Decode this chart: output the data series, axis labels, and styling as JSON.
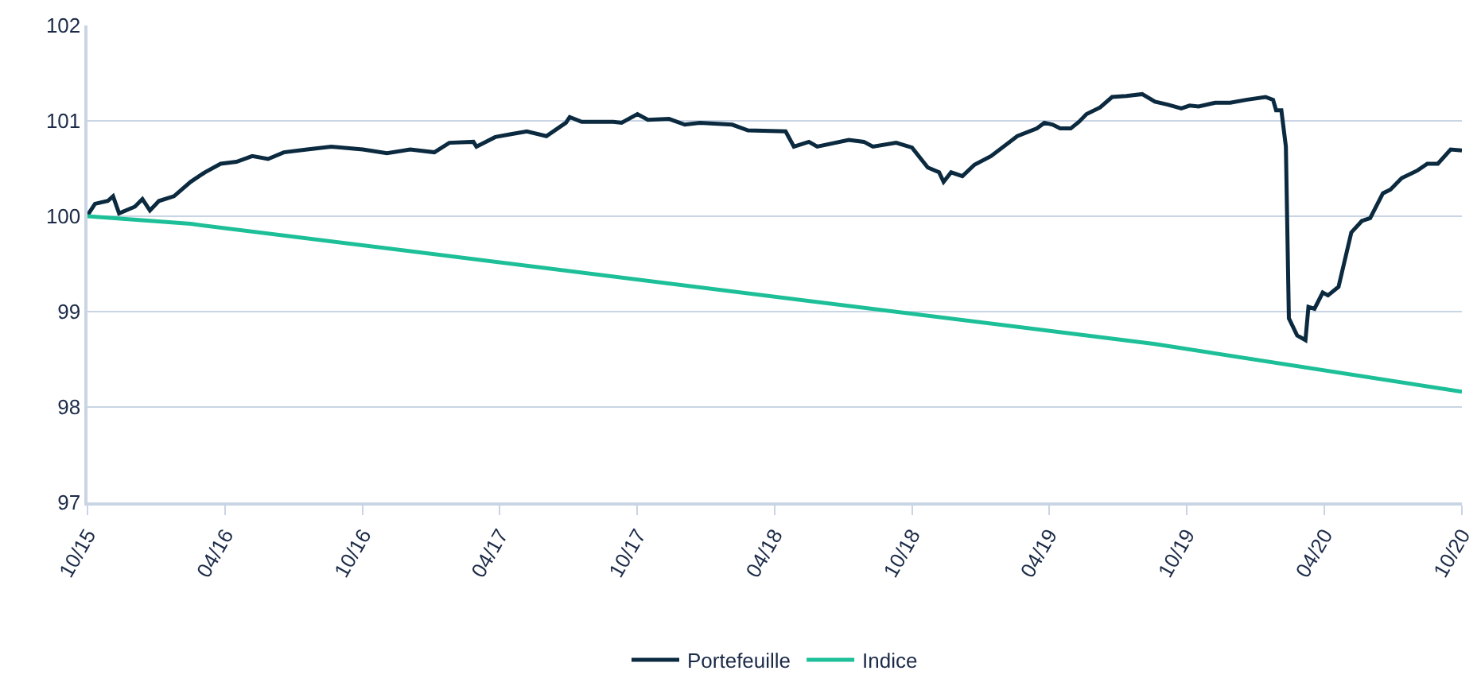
{
  "chart_data": {
    "type": "line",
    "series": [
      {
        "name": "Portefeuille",
        "color": "#0b2a3f",
        "x": [
          "2015-10-01",
          "2015-10-11",
          "2015-10-28",
          "2015-11-04",
          "2015-11-12",
          "2015-12-03",
          "2015-12-13",
          "2015-12-23",
          "2016-01-04",
          "2016-01-24",
          "2016-02-15",
          "2016-03-05",
          "2016-03-26",
          "2016-04-16",
          "2016-05-07",
          "2016-05-28",
          "2016-06-18",
          "2016-07-19",
          "2016-08-20",
          "2016-10-01",
          "2016-11-02",
          "2016-12-03",
          "2017-01-04",
          "2017-01-24",
          "2017-02-25",
          "2017-03-01",
          "2017-03-26",
          "2017-04-16",
          "2017-05-07",
          "2017-06-02",
          "2017-06-28",
          "2017-07-03",
          "2017-07-19",
          "2017-08-30",
          "2017-09-10",
          "2017-10-01",
          "2017-10-15",
          "2017-11-12",
          "2017-12-03",
          "2017-12-23",
          "2018-02-04",
          "2018-02-25",
          "2018-04-16",
          "2018-04-27",
          "2018-05-17",
          "2018-05-28",
          "2018-07-09",
          "2018-07-29",
          "2018-08-10",
          "2018-09-10",
          "2018-10-01",
          "2018-10-22",
          "2018-11-06",
          "2018-11-12",
          "2018-11-22",
          "2018-12-07",
          "2018-12-23",
          "2019-01-14",
          "2019-02-18",
          "2019-03-16",
          "2019-03-26",
          "2019-04-06",
          "2019-04-16",
          "2019-04-30",
          "2019-05-11",
          "2019-05-21",
          "2019-06-08",
          "2019-06-24",
          "2019-07-13",
          "2019-08-03",
          "2019-08-20",
          "2019-09-06",
          "2019-09-24",
          "2019-10-05",
          "2019-10-17",
          "2019-11-08",
          "2019-11-28",
          "2019-12-19",
          "2020-01-14",
          "2020-01-24",
          "2020-01-28",
          "2020-02-04",
          "2020-02-10",
          "2020-02-14",
          "2020-02-25",
          "2020-03-07",
          "2020-03-11",
          "2020-03-19",
          "2020-03-30",
          "2020-04-06",
          "2020-04-20",
          "2020-05-07",
          "2020-05-21",
          "2020-06-01",
          "2020-06-18",
          "2020-06-28",
          "2020-07-13",
          "2020-08-03",
          "2020-08-16",
          "2020-08-30",
          "2020-09-16",
          "2020-10-01"
        ],
        "values": [
          100.01,
          100.13,
          100.16,
          100.21,
          100.03,
          100.1,
          100.18,
          100.06,
          100.16,
          100.21,
          100.36,
          100.46,
          100.55,
          100.57,
          100.63,
          100.6,
          100.67,
          100.7,
          100.73,
          100.7,
          100.66,
          100.7,
          100.67,
          100.77,
          100.78,
          100.73,
          100.83,
          100.86,
          100.89,
          100.84,
          100.98,
          101.04,
          100.99,
          100.99,
          100.98,
          101.07,
          101.01,
          101.02,
          100.96,
          100.98,
          100.96,
          100.9,
          100.89,
          100.73,
          100.78,
          100.73,
          100.8,
          100.78,
          100.73,
          100.77,
          100.72,
          100.51,
          100.46,
          100.36,
          100.46,
          100.42,
          100.54,
          100.63,
          100.84,
          100.92,
          100.98,
          100.96,
          100.92,
          100.92,
          100.99,
          101.07,
          101.14,
          101.25,
          101.26,
          101.28,
          101.2,
          101.17,
          101.13,
          101.16,
          101.15,
          101.19,
          101.19,
          101.22,
          101.25,
          101.22,
          101.11,
          101.11,
          100.73,
          98.93,
          98.75,
          98.7,
          99.05,
          99.03,
          99.2,
          99.17,
          99.26,
          99.83,
          99.95,
          99.98,
          100.24,
          100.28,
          100.4,
          100.48,
          100.55,
          100.55,
          100.7,
          100.69
        ]
      },
      {
        "name": "Indice",
        "color": "#1dbf98",
        "x": [
          "2015-10-01",
          "2016-02-15",
          "2019-08-20",
          "2020-10-01"
        ],
        "values": [
          100,
          99.92,
          98.66,
          98.16
        ]
      }
    ],
    "xlim": [
      "2015-10-01",
      "2020-10-01"
    ],
    "xticks": [
      {
        "value": "2015-10-01",
        "label": "10/15"
      },
      {
        "value": "2016-04-01",
        "label": "04/16"
      },
      {
        "value": "2016-10-01",
        "label": "10/16"
      },
      {
        "value": "2017-04-01",
        "label": "04/17"
      },
      {
        "value": "2017-10-01",
        "label": "10/17"
      },
      {
        "value": "2018-04-01",
        "label": "04/18"
      },
      {
        "value": "2018-10-01",
        "label": "10/18"
      },
      {
        "value": "2019-04-01",
        "label": "04/19"
      },
      {
        "value": "2019-10-01",
        "label": "10/19"
      },
      {
        "value": "2020-04-01",
        "label": "04/20"
      },
      {
        "value": "2020-10-01",
        "label": "10/20"
      }
    ],
    "ylim": [
      97,
      102
    ],
    "yticks": [
      97,
      98,
      99,
      100,
      101,
      102
    ],
    "grid": "y",
    "legend": "bottom",
    "marker": "none",
    "line_style": "solid"
  }
}
